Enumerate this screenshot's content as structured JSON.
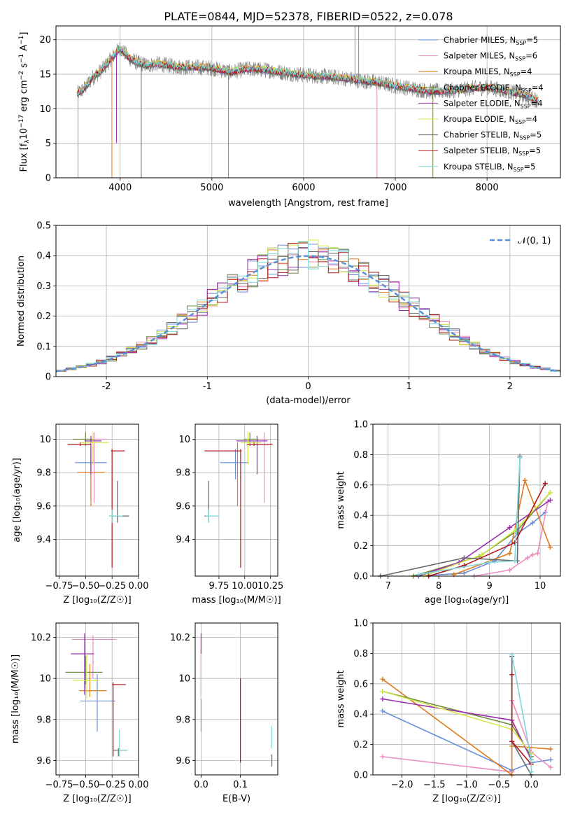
{
  "figure": {
    "title": "PLATE=0844, MJD=52378, FIBERID=0522, z=0.078"
  },
  "series_styles": [
    {
      "name": "Chabrier MILES, N$_{SSP}$=5",
      "label_main": "Chabrier MILES, N",
      "label_sub": "SSP",
      "label_tail": "=5",
      "color": "#6a8fd8"
    },
    {
      "name": "Salpeter MILES, N$_{SSP}$=6",
      "label_main": "Salpeter MILES, N",
      "label_sub": "SSP",
      "label_tail": "=6",
      "color": "#e88ec0"
    },
    {
      "name": "Kroupa MILES, N$_{SSP}$=4",
      "label_main": "Kroupa MILES, N",
      "label_sub": "SSP",
      "label_tail": "=4",
      "color": "#e07b1f"
    },
    {
      "name": "Chabrier ELODIE, N$_{SSP}$=4",
      "label_main": "Chabrier ELODIE, N",
      "label_sub": "SSP",
      "label_tail": "=4",
      "color": "#6a8c3a"
    },
    {
      "name": "Salpeter ELODIE, N$_{SSP}$=4",
      "label_main": "Salpeter ELODIE, N",
      "label_sub": "SSP",
      "label_tail": "=4",
      "color": "#9b30b0"
    },
    {
      "name": "Kroupa ELODIE, N$_{SSP}$=4",
      "label_main": "Kroupa ELODIE, N",
      "label_sub": "SSP",
      "label_tail": "=4",
      "color": "#d4e84a"
    },
    {
      "name": "Chabrier STELIB, N$_{SSP}$=5",
      "label_main": "Chabrier STELIB, N",
      "label_sub": "SSP",
      "label_tail": "=5",
      "color": "#666666"
    },
    {
      "name": "Salpeter STELIB, N$_{SSP}$=5",
      "label_main": "Salpeter STELIB, N",
      "label_sub": "SSP",
      "label_tail": "=5",
      "color": "#b2181e"
    },
    {
      "name": "Kroupa STELIB, N$_{SSP}$=5",
      "label_main": "Kroupa STELIB, N",
      "label_sub": "SSP",
      "label_tail": "=5",
      "color": "#7fd6d6"
    }
  ],
  "chart_data": [
    {
      "id": "spectrum",
      "type": "line",
      "xlabel": "wavelength [Angstrom, rest frame]",
      "ylabel_main": "Flux [f",
      "ylabel_rest": "10",
      "ylabel_exp1": "−17",
      "ylabel_unit": " erg cm",
      "ylabel_exp2": "−2",
      "ylabel_unit2": " s",
      "ylabel_exp3": "−1",
      "ylabel_unit3": " A",
      "ylabel_exp4": "−1",
      "ylabel_unit4": "]",
      "ylabel_sub": "λ",
      "xlim": [
        3300,
        8800
      ],
      "ylim": [
        0,
        22
      ],
      "xticks": [
        4000,
        5000,
        6000,
        7000,
        8000
      ],
      "yticks": [
        0,
        5,
        10,
        15,
        20
      ],
      "continuum": {
        "x": [
          3530,
          3600,
          3700,
          3800,
          3900,
          4000,
          4100,
          4200,
          4300,
          4400,
          4600,
          4800,
          5000,
          5200,
          5400,
          5600,
          5800,
          6000,
          6200,
          6400,
          6600,
          6800,
          7000,
          7200,
          7400,
          7600,
          7800,
          8000,
          8200,
          8400,
          8560
        ],
        "y": [
          12.2,
          12.8,
          14.5,
          15.6,
          17.2,
          18.8,
          17.3,
          16.6,
          16.3,
          16.5,
          16.1,
          16.0,
          15.9,
          15.3,
          15.8,
          15.6,
          15.2,
          14.9,
          14.7,
          14.5,
          14.1,
          13.8,
          13.3,
          12.9,
          12.5,
          12.6,
          12.9,
          13.1,
          12.6,
          12.0,
          11.2
        ]
      },
      "legend_position": "upper right"
    },
    {
      "id": "residuals",
      "type": "histogram",
      "xlabel": "(data-model)/error",
      "ylabel": "Normed distribution",
      "xlim": [
        -2.5,
        2.5
      ],
      "ylim": [
        0,
        0.5
      ],
      "xticks": [
        -2,
        -1,
        0,
        1,
        2
      ],
      "yticks": [
        0,
        0.1,
        0.2,
        0.3,
        0.4,
        0.5
      ],
      "bin_width": 0.1,
      "gaussian_label": "𝒩(0, 1)",
      "gaussian_color": "#5b8fd6",
      "legend_position": "upper right"
    },
    {
      "id": "age_vs_Z",
      "type": "errorbar",
      "xlabel": "Z [log₁₀(Z/Z☉)]",
      "ylabel": "age  [log₁₀(age/yr)]",
      "xlim": [
        -0.78,
        0.0
      ],
      "ylim": [
        9.18,
        10.09
      ],
      "xticks": [
        -0.75,
        -0.5,
        -0.25,
        0.0
      ],
      "xtick_labels": [
        "−0.75",
        "−0.50",
        "−0.25",
        "0.00"
      ],
      "yticks": [
        9.4,
        9.6,
        9.8,
        10.0
      ],
      "points": [
        {
          "s": 0,
          "x": -0.45,
          "y": 9.86,
          "xerr": [
            0.15,
            0.15
          ],
          "yerr": [
            0.1,
            0.08
          ]
        },
        {
          "s": 1,
          "x": -0.42,
          "y": 10.0,
          "xerr": [
            0.12,
            0.12
          ],
          "yerr": [
            0.38,
            0.04
          ]
        },
        {
          "s": 2,
          "x": -0.45,
          "y": 9.8,
          "xerr": [
            0.13,
            0.13
          ],
          "yerr": [
            0.2,
            0.18
          ]
        },
        {
          "s": 3,
          "x": -0.5,
          "y": 10.0,
          "xerr": [
            0.12,
            0.08
          ],
          "yerr": [
            0.04,
            0.04
          ]
        },
        {
          "s": 4,
          "x": -0.45,
          "y": 9.99,
          "xerr": [
            0.06,
            0.1
          ],
          "yerr": [
            0.2,
            0.03
          ]
        },
        {
          "s": 5,
          "x": -0.43,
          "y": 9.98,
          "xerr": [
            0.12,
            0.15
          ],
          "yerr": [
            0.13,
            0.06
          ]
        },
        {
          "s": 6,
          "x": -0.2,
          "y": 9.54,
          "xerr": [
            0.04,
            0.11
          ],
          "yerr": [
            0.04,
            0.21
          ]
        },
        {
          "s": 7,
          "x": -0.25,
          "y": 9.93,
          "xerr": [
            0.01,
            0.12
          ],
          "yerr": [
            0.7,
            0.01
          ]
        },
        {
          "s": 8,
          "x": -0.25,
          "y": 9.54,
          "xerr": [
            0.03,
            0.1
          ],
          "yerr": [
            0.04,
            0.04
          ]
        },
        {
          "s": 7,
          "x": -0.55,
          "y": 9.97,
          "xerr": [
            0.12,
            0.1
          ],
          "yerr": [
            0.01,
            0.01
          ]
        }
      ]
    },
    {
      "id": "age_vs_mass",
      "type": "errorbar",
      "xlabel": "mass [log₁₀(M/M☉)]",
      "ylabel": "",
      "xlim": [
        9.52,
        10.32
      ],
      "ylim": [
        9.18,
        10.09
      ],
      "xticks": [
        9.75,
        10.0,
        10.25
      ],
      "xtick_labels": [
        "9.75",
        "10.00",
        "10.25"
      ],
      "yticks": [
        9.4,
        9.6,
        9.8,
        10.0
      ],
      "points": [
        {
          "s": 0,
          "x": 9.91,
          "y": 9.86,
          "xerr": [
            0.15,
            0.13
          ],
          "yerr": [
            0.1,
            0.08
          ]
        },
        {
          "s": 1,
          "x": 10.19,
          "y": 10.0,
          "xerr": [
            0.19,
            0.02
          ],
          "yerr": [
            0.38,
            0.04
          ]
        },
        {
          "s": 2,
          "x": 9.93,
          "y": 9.8,
          "xerr": [
            0.0,
            0.0
          ],
          "yerr": [
            0.2,
            0.18
          ]
        },
        {
          "s": 3,
          "x": 10.05,
          "y": 10.0,
          "xerr": [
            0.06,
            0.08
          ],
          "yerr": [
            0.04,
            0.04
          ]
        },
        {
          "s": 4,
          "x": 10.12,
          "y": 9.99,
          "xerr": [
            0.2,
            0.1
          ],
          "yerr": [
            0.2,
            0.03
          ]
        },
        {
          "s": 5,
          "x": 10.03,
          "y": 9.98,
          "xerr": [
            0.07,
            0.13
          ],
          "yerr": [
            0.13,
            0.06
          ]
        },
        {
          "s": 6,
          "x": 9.65,
          "y": 9.54,
          "xerr": [
            0.04,
            0.01
          ],
          "yerr": [
            0.04,
            0.21
          ]
        },
        {
          "s": 7,
          "x": 9.96,
          "y": 9.93,
          "xerr": [
            0.35,
            0.01
          ],
          "yerr": [
            0.7,
            0.01
          ]
        },
        {
          "s": 8,
          "x": 9.65,
          "y": 9.54,
          "xerr": [
            0.03,
            0.1
          ],
          "yerr": [
            0.04,
            0.04
          ]
        },
        {
          "s": 7,
          "x": 10.09,
          "y": 9.97,
          "xerr": [
            0.07,
            0.18
          ],
          "yerr": [
            0.01,
            0.01
          ]
        }
      ]
    },
    {
      "id": "weight_vs_age",
      "type": "line",
      "xlabel": "age  [log₁₀(age/yr)]",
      "ylabel": "mass weight",
      "xlim": [
        6.7,
        10.4
      ],
      "ylim": [
        0,
        1.0
      ],
      "xticks": [
        7,
        8,
        9,
        10
      ],
      "yticks": [
        0,
        0.2,
        0.4,
        0.6,
        0.8,
        1.0
      ],
      "ytick_labels": [
        "0.0",
        "0.2",
        "0.4",
        "0.6",
        "0.8",
        "1.0"
      ],
      "series": [
        {
          "s": 0,
          "x": [
            7.6,
            8.5,
            9.1,
            9.55,
            9.85,
            10.1
          ],
          "y": [
            0.0,
            0.02,
            0.1,
            0.28,
            0.35,
            0.42
          ]
        },
        {
          "s": 1,
          "x": [
            8.7,
            9.4,
            9.75,
            9.85,
            9.95,
            10.15
          ],
          "y": [
            0.0,
            0.04,
            0.12,
            0.14,
            0.15,
            0.49
          ]
        },
        {
          "s": 2,
          "x": [
            8.3,
            9.4,
            9.7,
            10.2
          ],
          "y": [
            0.01,
            0.15,
            0.63,
            0.19
          ]
        },
        {
          "s": 3,
          "x": [
            7.5,
            8.8,
            9.55,
            10.2
          ],
          "y": [
            0.0,
            0.13,
            0.3,
            0.55
          ]
        },
        {
          "s": 4,
          "x": [
            7.6,
            8.4,
            9.4,
            10.2
          ],
          "y": [
            0.0,
            0.09,
            0.32,
            0.5
          ]
        },
        {
          "s": 5,
          "x": [
            7.7,
            8.85,
            9.5,
            10.2
          ],
          "y": [
            0.0,
            0.14,
            0.3,
            0.55
          ]
        },
        {
          "s": 6,
          "x": [
            6.85,
            8.5,
            9.55,
            9.6
          ],
          "y": [
            0.0,
            0.12,
            0.1,
            0.79
          ]
        },
        {
          "s": 7,
          "x": [
            7.8,
            8.5,
            9.5,
            10.1
          ],
          "y": [
            0.0,
            0.07,
            0.22,
            0.61
          ]
        },
        {
          "s": 8,
          "x": [
            7.6,
            9.0,
            9.5,
            9.6
          ],
          "y": [
            0.01,
            0.09,
            0.1,
            0.78
          ]
        }
      ]
    },
    {
      "id": "mass_vs_Z",
      "type": "errorbar",
      "xlabel": "Z [log₁₀(Z/Z☉)]",
      "ylabel": "mass [log₁₀(M/M☉)]",
      "xlim": [
        -0.78,
        0.0
      ],
      "ylim": [
        9.53,
        10.27
      ],
      "xticks": [
        -0.75,
        -0.5,
        -0.25,
        0.0
      ],
      "xtick_labels": [
        "−0.75",
        "−0.50",
        "−0.25",
        "0.00"
      ],
      "yticks": [
        9.6,
        9.8,
        10.0,
        10.2
      ],
      "points": [
        {
          "s": 0,
          "x": -0.39,
          "y": 9.89,
          "xerr": [
            0.16,
            0.17
          ],
          "yerr": [
            0.15,
            0.13
          ]
        },
        {
          "s": 1,
          "x": -0.43,
          "y": 10.19,
          "xerr": [
            0.2,
            0.22
          ],
          "yerr": [
            0.19,
            0.02
          ]
        },
        {
          "s": 2,
          "x": -0.46,
          "y": 9.94,
          "xerr": [
            0.1,
            0.16
          ],
          "yerr": [
            0.03,
            0.13
          ]
        },
        {
          "s": 3,
          "x": -0.5,
          "y": 10.03,
          "xerr": [
            0.19,
            0.16
          ],
          "yerr": [
            0.06,
            0.08
          ]
        },
        {
          "s": 4,
          "x": -0.51,
          "y": 10.12,
          "xerr": [
            0.13,
            0.09
          ],
          "yerr": [
            0.2,
            0.1
          ]
        },
        {
          "s": 5,
          "x": -0.49,
          "y": 9.99,
          "xerr": [
            0.13,
            0.12
          ],
          "yerr": [
            0.09,
            0.13
          ]
        },
        {
          "s": 6,
          "x": -0.19,
          "y": 9.65,
          "xerr": [
            0.05,
            0.08
          ],
          "yerr": [
            0.03,
            0.01
          ]
        },
        {
          "s": 7,
          "x": -0.24,
          "y": 9.97,
          "xerr": [
            0.01,
            0.12
          ],
          "yerr": [
            0.35,
            0.01
          ]
        },
        {
          "s": 8,
          "x": -0.18,
          "y": 9.65,
          "xerr": [
            0.01,
            0.08
          ],
          "yerr": [
            0.03,
            0.1
          ]
        }
      ]
    },
    {
      "id": "mass_vs_EBV",
      "type": "errorbar",
      "xlabel": "E(B-V)",
      "ylabel": "",
      "xlim": [
        -0.015,
        0.195
      ],
      "ylim": [
        9.53,
        10.27
      ],
      "xticks": [
        0.0,
        0.1
      ],
      "xtick_labels": [
        "0.0",
        "0.1"
      ],
      "yticks": [
        9.6,
        9.8,
        10.0,
        10.2
      ],
      "points": [
        {
          "s": 0,
          "x": 0.0,
          "y": 9.89,
          "xerr": [
            0,
            0
          ],
          "yerr": [
            0.15,
            0.13
          ]
        },
        {
          "s": 1,
          "x": 0.0,
          "y": 10.19,
          "xerr": [
            0,
            0
          ],
          "yerr": [
            0.19,
            0.02
          ]
        },
        {
          "s": 4,
          "x": 0.0,
          "y": 10.12,
          "xerr": [
            0,
            0
          ],
          "yerr": [
            0.2,
            0.1
          ]
        },
        {
          "s": 5,
          "x": 0.0,
          "y": 9.99,
          "xerr": [
            0,
            0
          ],
          "yerr": [
            0.09,
            0.13
          ]
        },
        {
          "s": 7,
          "x": 0.1,
          "y": 9.79,
          "xerr": [
            0,
            0
          ],
          "yerr": [
            0.2,
            0.21
          ]
        },
        {
          "s": 6,
          "x": 0.18,
          "y": 9.6,
          "xerr": [
            0,
            0
          ],
          "yerr": [
            0.03,
            0.03
          ]
        },
        {
          "s": 8,
          "x": 0.18,
          "y": 9.69,
          "xerr": [
            0,
            0
          ],
          "yerr": [
            0.03,
            0.08
          ]
        }
      ]
    },
    {
      "id": "weight_vs_Z",
      "type": "line",
      "xlabel": "Z [log₁₀(Z/Z☉)]",
      "ylabel": "mass weight",
      "xlim": [
        -2.45,
        0.45
      ],
      "ylim": [
        0,
        1.0
      ],
      "xticks": [
        -2.0,
        -1.5,
        -1.0,
        -0.5,
        0.0
      ],
      "xtick_labels": [
        "−2.0",
        "−1.5",
        "−1.0",
        "−0.5",
        "0.0"
      ],
      "yticks": [
        0,
        0.2,
        0.4,
        0.6,
        0.8,
        1.0
      ],
      "ytick_labels": [
        "0.0",
        "0.2",
        "0.4",
        "0.6",
        "0.8",
        "1.0"
      ],
      "series": [
        {
          "s": 0,
          "x": [
            -2.3,
            -0.3,
            0.0,
            0.3
          ],
          "y": [
            0.42,
            0.03,
            0.08,
            0.1
          ]
        },
        {
          "s": 1,
          "x": [
            -2.3,
            -0.3,
            -0.3,
            0.0,
            0.3
          ],
          "y": [
            0.12,
            0.02,
            0.49,
            0.15,
            0.05
          ]
        },
        {
          "s": 2,
          "x": [
            -2.3,
            -0.3,
            -0.3,
            0.3
          ],
          "y": [
            0.63,
            0.0,
            0.19,
            0.17
          ]
        },
        {
          "s": 3,
          "x": [
            -2.3,
            -0.3,
            0.0
          ],
          "y": [
            0.55,
            0.33,
            0.12
          ]
        },
        {
          "s": 4,
          "x": [
            -2.3,
            -0.3,
            0.0
          ],
          "y": [
            0.5,
            0.36,
            0.1
          ]
        },
        {
          "s": 5,
          "x": [
            -2.3,
            -0.3,
            0.0
          ],
          "y": [
            0.55,
            0.3,
            0.14
          ]
        },
        {
          "s": 6,
          "x": [
            -0.3,
            -0.3,
            0.0
          ],
          "y": [
            0.78,
            0.22,
            0.0
          ]
        },
        {
          "s": 7,
          "x": [
            -0.3,
            -0.3,
            0.0
          ],
          "y": [
            0.66,
            0.22,
            0.07
          ]
        },
        {
          "s": 8,
          "x": [
            -0.3,
            0.0,
            0.0
          ],
          "y": [
            0.79,
            0.1,
            0.02
          ]
        }
      ]
    }
  ]
}
